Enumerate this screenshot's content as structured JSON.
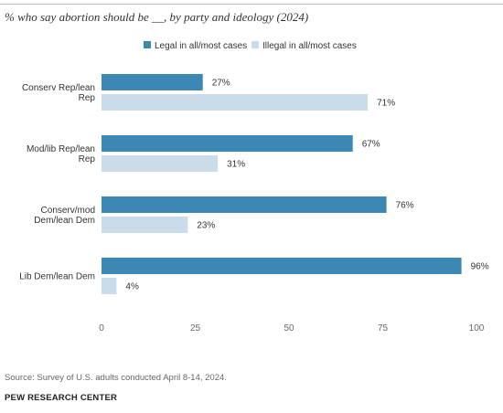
{
  "title": "% who say abortion should be __, by party and ideology (2024)",
  "source": "Source: Survey of U.S. adults conducted April 8-14, 2024.",
  "brand": "PEW RESEARCH CENTER",
  "chart_data": {
    "type": "bar",
    "orientation": "horizontal",
    "categories": [
      [
        "Conserv Rep/lean",
        "Rep"
      ],
      [
        "Mod/lib Rep/lean",
        "Rep"
      ],
      [
        "Conserv/mod",
        "Dem/lean Dem"
      ],
      [
        "Lib Dem/lean Dem"
      ]
    ],
    "series": [
      {
        "name": "Legal in all/most cases",
        "color": "#3d87b5",
        "values": [
          27,
          67,
          76,
          96
        ],
        "labels": [
          "27%",
          "67%",
          "76%",
          "96%"
        ]
      },
      {
        "name": "Illegal in all/most cases",
        "color": "#cadbea",
        "values": [
          71,
          31,
          23,
          4
        ],
        "labels": [
          "71%",
          "31%",
          "23%",
          "4%"
        ]
      }
    ],
    "xlim": [
      0,
      100
    ],
    "ticks": [
      0,
      25,
      50,
      75,
      100
    ],
    "tick_labels": [
      "0",
      "25",
      "50",
      "75",
      "100"
    ],
    "legend_position": "top-right",
    "grid": false
  }
}
